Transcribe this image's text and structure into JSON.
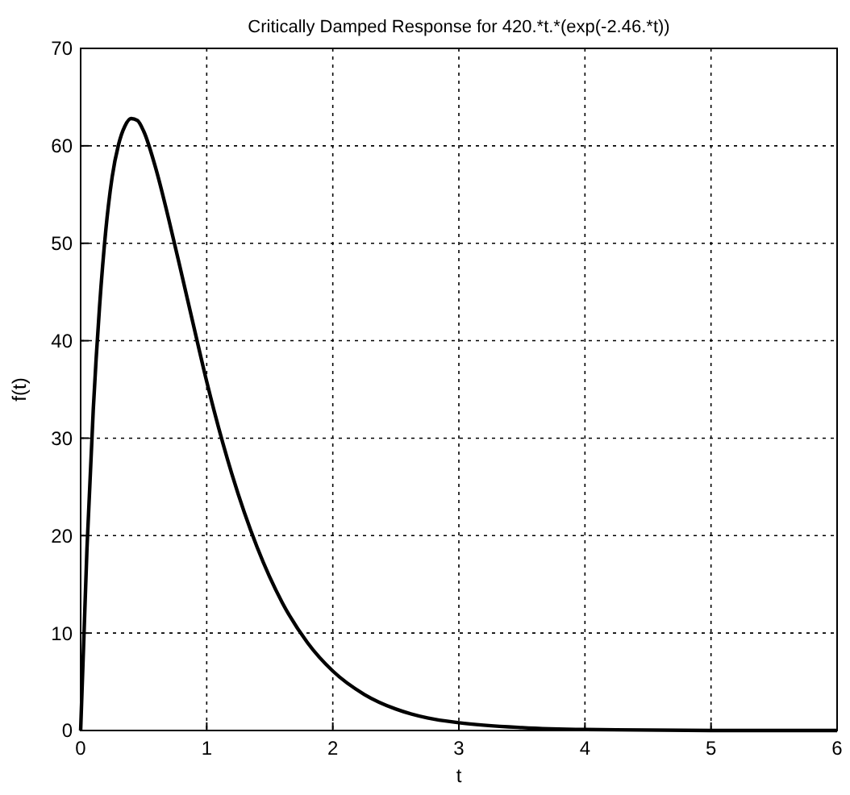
{
  "chart_data": {
    "type": "line",
    "title": "Critically Damped Response for 420.*t.*(exp(-2.46.*t))",
    "xlabel": "t",
    "ylabel": "f(t)",
    "series": [
      {
        "color": "#000000",
        "x": [
          0,
          0.05,
          0.1,
          0.15,
          0.2,
          0.25,
          0.3,
          0.35,
          0.4,
          0.45,
          0.5,
          0.6,
          0.7,
          0.8,
          0.9,
          1.0,
          1.2,
          1.4,
          1.6,
          1.8,
          2.0,
          2.25,
          2.5,
          2.75,
          3.0,
          3.5,
          4,
          5,
          6
        ],
        "values": [
          0,
          18.6,
          32.9,
          43.5,
          51.4,
          56.8,
          60.1,
          62,
          62.8,
          62.6,
          61.5,
          57.5,
          52.4,
          46.9,
          41.3,
          35.8,
          26.3,
          18.8,
          13.1,
          9,
          6.1,
          3.7,
          2.2,
          1.3,
          0.8,
          0.3,
          0.1,
          0,
          0
        ]
      }
    ],
    "xlim": [
      0,
      6
    ],
    "xticks": [
      0,
      1,
      2,
      3,
      4,
      5,
      6
    ],
    "ylim": [
      0,
      70
    ],
    "yticks": [
      0,
      10,
      20,
      30,
      40,
      50,
      60,
      70
    ],
    "grid": true,
    "line_style": "solid",
    "marker": "none"
  }
}
